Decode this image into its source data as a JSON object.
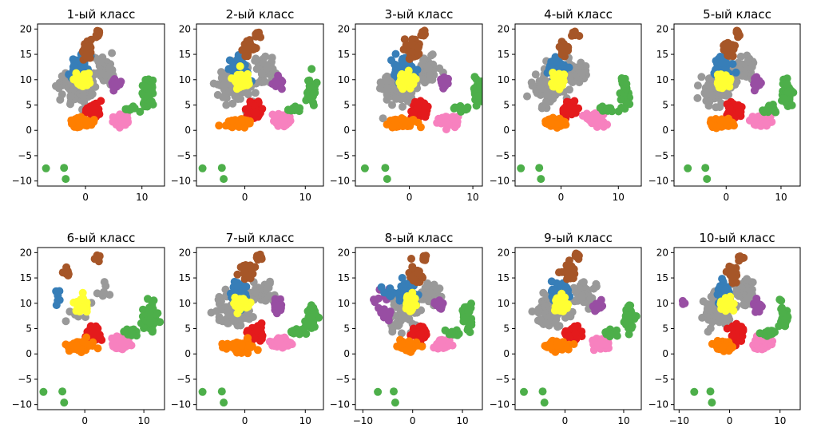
{
  "palette": {
    "blue": "#377eb8",
    "orange": "#ff7f00",
    "green": "#4daf4a",
    "pink": "#f781bf",
    "brown": "#a65628",
    "purple": "#984ea3",
    "gray": "#999999",
    "red": "#e41a1c",
    "yellow": "#ffff33"
  },
  "chart_data": [
    {
      "type": "scatter",
      "title": "1-ый класс",
      "xlim": [
        -8.5,
        14
      ],
      "ylim": [
        -11,
        21
      ],
      "xticks": [
        0,
        10
      ],
      "yticks": [
        -10,
        -5,
        0,
        5,
        10,
        15,
        20
      ],
      "tick_labels_x": [
        "0",
        "10"
      ],
      "tick_labels_y": [
        "−10",
        "−5",
        "0",
        "5",
        "10",
        "15",
        "20"
      ]
    },
    {
      "type": "scatter",
      "title": "2-ый класс",
      "xlim": [
        -8,
        13
      ],
      "ylim": [
        -11,
        21
      ],
      "xticks": [
        0,
        10
      ],
      "yticks": [
        -10,
        -5,
        0,
        5,
        10,
        15,
        20
      ],
      "tick_labels_x": [
        "0",
        "10"
      ],
      "tick_labels_y": [
        "−10",
        "−5",
        "0",
        "5",
        "10",
        "15",
        "20"
      ]
    },
    {
      "type": "scatter",
      "title": "3-ый класс",
      "xlim": [
        -8.5,
        11.5
      ],
      "ylim": [
        -11,
        21
      ],
      "xticks": [
        0,
        10
      ],
      "yticks": [
        -10,
        -5,
        0,
        5,
        10,
        15,
        20
      ],
      "tick_labels_x": [
        "0",
        "10"
      ],
      "tick_labels_y": [
        "−10",
        "−5",
        "0",
        "5",
        "10",
        "15",
        "20"
      ]
    },
    {
      "type": "scatter",
      "title": "4-ый класс",
      "xlim": [
        -8,
        14
      ],
      "ylim": [
        -11,
        21
      ],
      "xticks": [
        0,
        10
      ],
      "yticks": [
        -10,
        -5,
        0,
        5,
        10,
        15,
        20
      ],
      "tick_labels_x": [
        "0",
        "10"
      ],
      "tick_labels_y": [
        "−10",
        "−5",
        "0",
        "5",
        "10",
        "15",
        "20"
      ]
    },
    {
      "type": "scatter",
      "title": "5-ый класс",
      "xlim": [
        -9.5,
        13.5
      ],
      "ylim": [
        -11,
        21
      ],
      "xticks": [
        0,
        10
      ],
      "yticks": [
        -10,
        -5,
        0,
        5,
        10,
        15,
        20
      ],
      "tick_labels_x": [
        "0",
        "10"
      ],
      "tick_labels_y": [
        "−10",
        "−5",
        "0",
        "5",
        "10",
        "15",
        "20"
      ]
    },
    {
      "type": "scatter",
      "title": "6-ый класс",
      "xlim": [
        -8,
        13.5
      ],
      "ylim": [
        -11,
        21
      ],
      "xticks": [
        0,
        10
      ],
      "yticks": [
        -10,
        -5,
        0,
        5,
        10,
        15,
        20
      ],
      "tick_labels_x": [
        "0",
        "10"
      ],
      "tick_labels_y": [
        "−10",
        "−5",
        "0",
        "5",
        "10",
        "15",
        "20"
      ]
    },
    {
      "type": "scatter",
      "title": "7-ый класс",
      "xlim": [
        -8,
        13
      ],
      "ylim": [
        -11,
        21
      ],
      "xticks": [
        0,
        10
      ],
      "yticks": [
        -10,
        -5,
        0,
        5,
        10,
        15,
        20
      ],
      "tick_labels_x": [
        "0",
        "10"
      ],
      "tick_labels_y": [
        "−10",
        "−5",
        "0",
        "5",
        "10",
        "15",
        "20"
      ]
    },
    {
      "type": "scatter",
      "title": "8-ый класс",
      "xlim": [
        -11.5,
        14
      ],
      "ylim": [
        -11,
        21
      ],
      "xticks": [
        -10,
        0,
        10
      ],
      "yticks": [
        -10,
        -5,
        0,
        5,
        10,
        15,
        20
      ],
      "tick_labels_x": [
        "−10",
        "0",
        "10"
      ],
      "tick_labels_y": [
        "−10",
        "−5",
        "0",
        "5",
        "10",
        "15",
        "20"
      ]
    },
    {
      "type": "scatter",
      "title": "9-ый класс",
      "xlim": [
        -8.5,
        13
      ],
      "ylim": [
        -11,
        21
      ],
      "xticks": [
        0,
        10
      ],
      "yticks": [
        -10,
        -5,
        0,
        5,
        10,
        15,
        20
      ],
      "tick_labels_x": [
        "0",
        "10"
      ],
      "tick_labels_y": [
        "−10",
        "−5",
        "0",
        "5",
        "10",
        "15",
        "20"
      ]
    },
    {
      "type": "scatter",
      "title": "10-ый класс",
      "xlim": [
        -11,
        14
      ],
      "ylim": [
        -11,
        21
      ],
      "xticks": [
        -10,
        0,
        10
      ],
      "yticks": [
        -10,
        -5,
        0,
        5,
        10,
        15,
        20
      ],
      "tick_labels_x": [
        "−10",
        "0",
        "10"
      ],
      "tick_labels_y": [
        "−10",
        "−5",
        "0",
        "5",
        "10",
        "15",
        "20"
      ]
    }
  ]
}
